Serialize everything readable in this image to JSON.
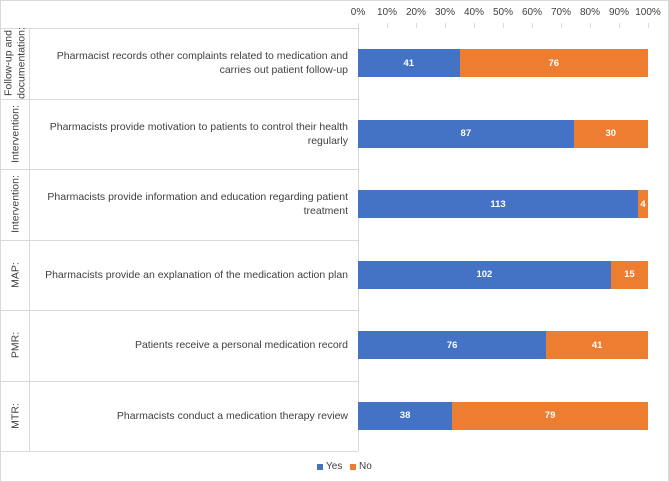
{
  "chart_data": {
    "type": "bar",
    "orientation": "horizontal",
    "stack": "percent",
    "groups": [
      "Follow-up and documentation:",
      "Intervention:",
      "Intervention:",
      "MAP:",
      "PMR:",
      "MTR:"
    ],
    "categories": [
      "Pharmacist records other complaints related to medication and carries out patient follow-up",
      "Pharmacists provide motivation to patients to control their health regularly",
      "Pharmacists provide information and education regarding patient treatment",
      "Pharmacists provide an explanation of the medication action plan",
      "Patients receive a personal medication record",
      "Pharmacists conduct a medication therapy review"
    ],
    "series": [
      {
        "name": "Yes",
        "color": "#4472c4",
        "values": [
          41,
          87,
          113,
          102,
          76,
          38
        ]
      },
      {
        "name": "No",
        "color": "#ed7d31",
        "values": [
          76,
          30,
          4,
          15,
          41,
          79
        ]
      }
    ],
    "xlim": [
      0,
      100
    ],
    "xticks": [
      {
        "value": 0,
        "label": "0%"
      },
      {
        "value": 10,
        "label": "10%"
      },
      {
        "value": 20,
        "label": "20%"
      },
      {
        "value": 30,
        "label": "30%"
      },
      {
        "value": 40,
        "label": "40%"
      },
      {
        "value": 50,
        "label": "50%"
      },
      {
        "value": 60,
        "label": "60%"
      },
      {
        "value": 70,
        "label": "70%"
      },
      {
        "value": 80,
        "label": "80%"
      },
      {
        "value": 90,
        "label": "90%"
      },
      {
        "value": 100,
        "label": "100%"
      }
    ],
    "legend": "bottom"
  }
}
